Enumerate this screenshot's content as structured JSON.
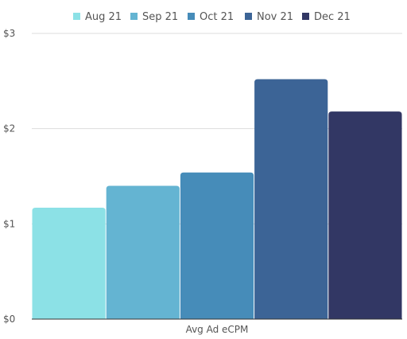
{
  "chart_data": {
    "type": "bar",
    "categories": [
      "Avg Ad eCPM"
    ],
    "series": [
      {
        "name": "Aug 21",
        "values": [
          1.17
        ],
        "color": "#8ce1e6"
      },
      {
        "name": "Sep 21",
        "values": [
          1.4
        ],
        "color": "#64b4d2"
      },
      {
        "name": "Oct 21",
        "values": [
          1.54
        ],
        "color": "#468cb9"
      },
      {
        "name": "Nov 21",
        "values": [
          2.52
        ],
        "color": "#3c6496"
      },
      {
        "name": "Dec 21",
        "values": [
          2.18
        ],
        "color": "#323764"
      }
    ],
    "y_ticks": [
      "$0",
      "$1",
      "$2",
      "$3"
    ],
    "ylim": [
      0,
      3
    ],
    "grid": true,
    "legend_position": "top"
  }
}
